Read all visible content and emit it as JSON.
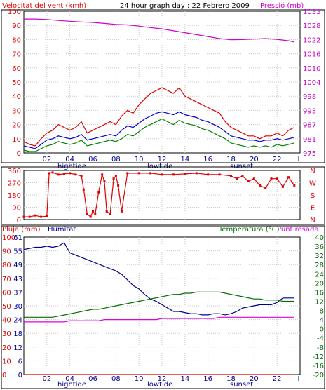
{
  "chart_data": [
    {
      "type": "line",
      "title": "24 hour graph day : 22 Febrero 2009",
      "left_axis_label": "Velocitat del vent (kmh)",
      "right_axis_label": "Pressió (mb)",
      "left_ylim": [
        0,
        100
      ],
      "left_ticks": [
        "0",
        "10",
        "20",
        "30",
        "40",
        "50",
        "60",
        "70",
        "80",
        "90",
        "100"
      ],
      "right_ticks": [
        "975",
        "981",
        "987",
        "993",
        "998",
        "1004",
        "1010",
        "1016",
        "1022",
        "1028",
        "1033"
      ],
      "right_ylim": [
        975,
        1033
      ],
      "x_ticks": [
        "02",
        "04",
        "06",
        "08",
        "10",
        "12",
        "14",
        "16",
        "18",
        "20",
        "22",
        "I"
      ],
      "x_annotations": [
        "hightide",
        "lowtide",
        "sunset"
      ],
      "grid": true,
      "series": [
        {
          "color": "#e00000",
          "axis": "left",
          "x": [
            0,
            0.5,
            1,
            1.5,
            2,
            2.5,
            3,
            3.5,
            4,
            4.5,
            5,
            5.5,
            6,
            6.5,
            7,
            7.5,
            8,
            8.5,
            9,
            9.5,
            10,
            10.5,
            11,
            11.5,
            12,
            12.5,
            13,
            13.5,
            14,
            14.5,
            15,
            15.5,
            16,
            16.5,
            17,
            17.5,
            18,
            18.5,
            19,
            19.5,
            20,
            20.5,
            21,
            21.5,
            22,
            22.5,
            23,
            23.5
          ],
          "values": [
            8,
            6,
            5,
            10,
            14,
            16,
            20,
            18,
            16,
            18,
            22,
            14,
            16,
            18,
            20,
            22,
            20,
            26,
            30,
            28,
            34,
            38,
            42,
            44,
            46,
            44,
            42,
            46,
            40,
            38,
            36,
            34,
            32,
            30,
            28,
            22,
            18,
            16,
            14,
            12,
            12,
            10,
            12,
            12,
            14,
            12,
            16,
            18
          ]
        },
        {
          "color": "#0000cc",
          "axis": "left",
          "x": [
            0,
            0.5,
            1,
            1.5,
            2,
            2.5,
            3,
            3.5,
            4,
            4.5,
            5,
            5.5,
            6,
            6.5,
            7,
            7.5,
            8,
            8.5,
            9,
            9.5,
            10,
            10.5,
            11,
            11.5,
            12,
            12.5,
            13,
            13.5,
            14,
            14.5,
            15,
            15.5,
            16,
            16.5,
            17,
            17.5,
            18,
            18.5,
            19,
            19.5,
            20,
            20.5,
            21,
            21.5,
            22,
            22.5,
            23,
            23.5
          ],
          "values": [
            5,
            4,
            3,
            6,
            9,
            10,
            12,
            11,
            10,
            11,
            13,
            9,
            10,
            11,
            12,
            13,
            12,
            16,
            19,
            18,
            21,
            24,
            26,
            28,
            29,
            28,
            27,
            29,
            27,
            26,
            25,
            23,
            22,
            20,
            18,
            15,
            12,
            11,
            10,
            9,
            9,
            8,
            9,
            9,
            10,
            9,
            10,
            11
          ]
        },
        {
          "color": "#008000",
          "axis": "left",
          "x": [
            0,
            0.5,
            1,
            1.5,
            2,
            2.5,
            3,
            3.5,
            4,
            4.5,
            5,
            5.5,
            6,
            6.5,
            7,
            7.5,
            8,
            8.5,
            9,
            9.5,
            10,
            10.5,
            11,
            11.5,
            12,
            12.5,
            13,
            13.5,
            14,
            14.5,
            15,
            15.5,
            16,
            16.5,
            17,
            17.5,
            18,
            18.5,
            19,
            19.5,
            20,
            20.5,
            21,
            21.5,
            22,
            22.5,
            23,
            23.5
          ],
          "values": [
            2,
            1,
            1,
            3,
            5,
            6,
            8,
            7,
            6,
            7,
            9,
            5,
            6,
            7,
            8,
            9,
            8,
            10,
            13,
            12,
            15,
            18,
            20,
            22,
            24,
            22,
            20,
            23,
            21,
            20,
            19,
            17,
            16,
            14,
            12,
            10,
            7,
            6,
            5,
            4,
            5,
            4,
            5,
            4,
            6,
            5,
            6,
            7
          ]
        },
        {
          "color": "#cc00cc",
          "axis": "right",
          "x": [
            0,
            1,
            2,
            3,
            4,
            5,
            6,
            7,
            8,
            9,
            10,
            11,
            12,
            13,
            14,
            15,
            16,
            17,
            18,
            19,
            20,
            21,
            22,
            23,
            23.5
          ],
          "values": [
            1029.8,
            1029.8,
            1029.6,
            1029.2,
            1028.9,
            1028.6,
            1028.4,
            1028.0,
            1027.6,
            1027.4,
            1026.9,
            1026.3,
            1025.8,
            1025.0,
            1024.2,
            1023.4,
            1022.6,
            1021.8,
            1021.3,
            1021.4,
            1021.6,
            1021.8,
            1021.5,
            1020.9,
            1020.4
          ]
        }
      ]
    },
    {
      "type": "scatter",
      "left_ylim": [
        0,
        360
      ],
      "left_ticks": [
        "0",
        "90",
        "180",
        "270",
        "360"
      ],
      "right_ticks": [
        "N",
        "E",
        "S",
        "W",
        "N"
      ],
      "grid": true,
      "series": [
        {
          "color": "#e00000",
          "axis": "left",
          "x": [
            0,
            0.5,
            1,
            1.5,
            2,
            2.2,
            2.5,
            3,
            3.5,
            4,
            4.5,
            5,
            5.2,
            5.5,
            5.8,
            6,
            6.2,
            6.5,
            6.8,
            7,
            7.2,
            7.5,
            7.8,
            8,
            8.2,
            8.5,
            9,
            10,
            11,
            12,
            13,
            14,
            15,
            16,
            17,
            18,
            18.5,
            19,
            19.5,
            20,
            20.5,
            21,
            21.5,
            22,
            22.5,
            23,
            23.5
          ],
          "values": [
            20,
            20,
            30,
            20,
            25,
            340,
            345,
            330,
            335,
            340,
            330,
            320,
            220,
            40,
            20,
            60,
            40,
            200,
            330,
            280,
            60,
            40,
            300,
            320,
            250,
            60,
            340,
            340,
            340,
            330,
            330,
            335,
            340,
            330,
            330,
            320,
            300,
            320,
            280,
            300,
            250,
            230,
            300,
            300,
            240,
            310,
            250
          ]
        }
      ]
    },
    {
      "type": "line",
      "labels": [
        "Pluja (mm)",
        "Humitat",
        "Temperatura (°C)",
        "Punt rosada"
      ],
      "rain_ticks": [
        "0",
        "10",
        "20",
        "30",
        "40",
        "50",
        "60",
        "70",
        "80",
        "90",
        "100"
      ],
      "rain_ylim": [
        0,
        100
      ],
      "humidity_ticks": [
        "0",
        "6",
        "12",
        "18",
        "24",
        "30",
        "37",
        "43",
        "49",
        "55",
        "61"
      ],
      "humidity_ylim": [
        0,
        61
      ],
      "temp_ticks": [
        "-20",
        "-16",
        "-12",
        "-8",
        "-4",
        "0",
        "4",
        "8",
        "12",
        "16",
        "20",
        "24",
        "28",
        "32",
        "36",
        "40"
      ],
      "temp_ylim": [
        -20,
        40
      ],
      "x_ticks": [
        "02",
        "04",
        "06",
        "08",
        "10",
        "12",
        "14",
        "16",
        "18",
        "20",
        "22",
        "I"
      ],
      "x_annotations": [
        "hightide",
        "lowtide",
        "sunset"
      ],
      "grid": true,
      "series": [
        {
          "color": "#000090",
          "axis": "humidity",
          "x": [
            0,
            0.5,
            1,
            1.5,
            2,
            2.5,
            3,
            3.5,
            4,
            4.5,
            5,
            5.5,
            6,
            6.5,
            7,
            7.5,
            8,
            8.5,
            9,
            9.5,
            10,
            10.5,
            11,
            11.5,
            12,
            12.5,
            13,
            13.5,
            14,
            14.5,
            15,
            15.5,
            16,
            16.5,
            17,
            17.5,
            18,
            18.5,
            19,
            19.5,
            20,
            20.5,
            21,
            21.5,
            22,
            22.5,
            23,
            23.5
          ],
          "values": [
            55.5,
            56,
            56.5,
            56.5,
            57,
            56.5,
            57,
            58.5,
            54,
            53,
            52,
            51,
            50,
            49,
            48,
            47,
            46,
            44.5,
            42,
            39.5,
            38,
            35.5,
            33.5,
            32.5,
            31,
            29.5,
            28,
            28,
            27.5,
            27,
            27,
            26.5,
            26.5,
            27,
            27,
            26.5,
            27,
            28,
            29.5,
            30,
            30.5,
            31,
            31,
            31,
            32,
            34,
            34,
            34
          ]
        },
        {
          "color": "#007000",
          "axis": "temp",
          "x": [
            0,
            0.5,
            1,
            1.5,
            2,
            2.5,
            3,
            3.5,
            4,
            4.5,
            5,
            5.5,
            6,
            6.5,
            7,
            7.5,
            8,
            8.5,
            9,
            9.5,
            10,
            10.5,
            11,
            11.5,
            12,
            12.5,
            13,
            13.5,
            14,
            14.5,
            15,
            15.5,
            16,
            16.5,
            17,
            17.5,
            18,
            18.5,
            19,
            19.5,
            20,
            20.5,
            21,
            21.5,
            22,
            22.5,
            23,
            23.5
          ],
          "values": [
            5,
            5,
            5,
            5,
            5,
            5,
            5.5,
            6,
            6.5,
            7,
            7.5,
            8,
            8.5,
            8.5,
            9,
            9.5,
            10,
            10.5,
            11,
            11.5,
            12,
            12.5,
            13,
            13.5,
            14,
            14.5,
            15,
            15,
            15.5,
            15.5,
            16,
            16,
            16,
            16,
            16,
            15.5,
            15,
            14.5,
            14,
            13.5,
            13,
            13,
            12.5,
            12.5,
            12.5,
            12,
            12,
            12
          ]
        },
        {
          "color": "#e000e0",
          "axis": "temp",
          "x": [
            0,
            0.5,
            1,
            1.5,
            2,
            2.5,
            3,
            3.5,
            4,
            4.5,
            5,
            5.5,
            6,
            6.5,
            7,
            7.5,
            8,
            8.5,
            9,
            9.5,
            10,
            10.5,
            11,
            11.5,
            12,
            12.5,
            13,
            13.5,
            14,
            14.5,
            15,
            15.5,
            16,
            16.5,
            17,
            17.5,
            18,
            18.5,
            19,
            19.5,
            20,
            20.5,
            21,
            21.5,
            22,
            22.5,
            23,
            23.5
          ],
          "values": [
            3,
            3,
            3,
            3,
            3,
            3,
            3,
            3,
            3.5,
            3.5,
            3.5,
            3.5,
            3.5,
            3.5,
            4,
            4,
            4,
            4,
            4,
            4,
            4,
            4,
            4,
            4,
            4.5,
            4.5,
            4.5,
            4.5,
            4.5,
            4.5,
            4.5,
            4.5,
            4.5,
            4.5,
            5,
            5,
            5,
            5,
            5,
            5,
            5,
            5,
            5,
            5,
            5,
            5,
            5,
            5
          ]
        },
        {
          "color": "#e00000",
          "axis": "rain",
          "x": [
            0,
            23.5
          ],
          "values": [
            0,
            0
          ]
        }
      ]
    }
  ]
}
